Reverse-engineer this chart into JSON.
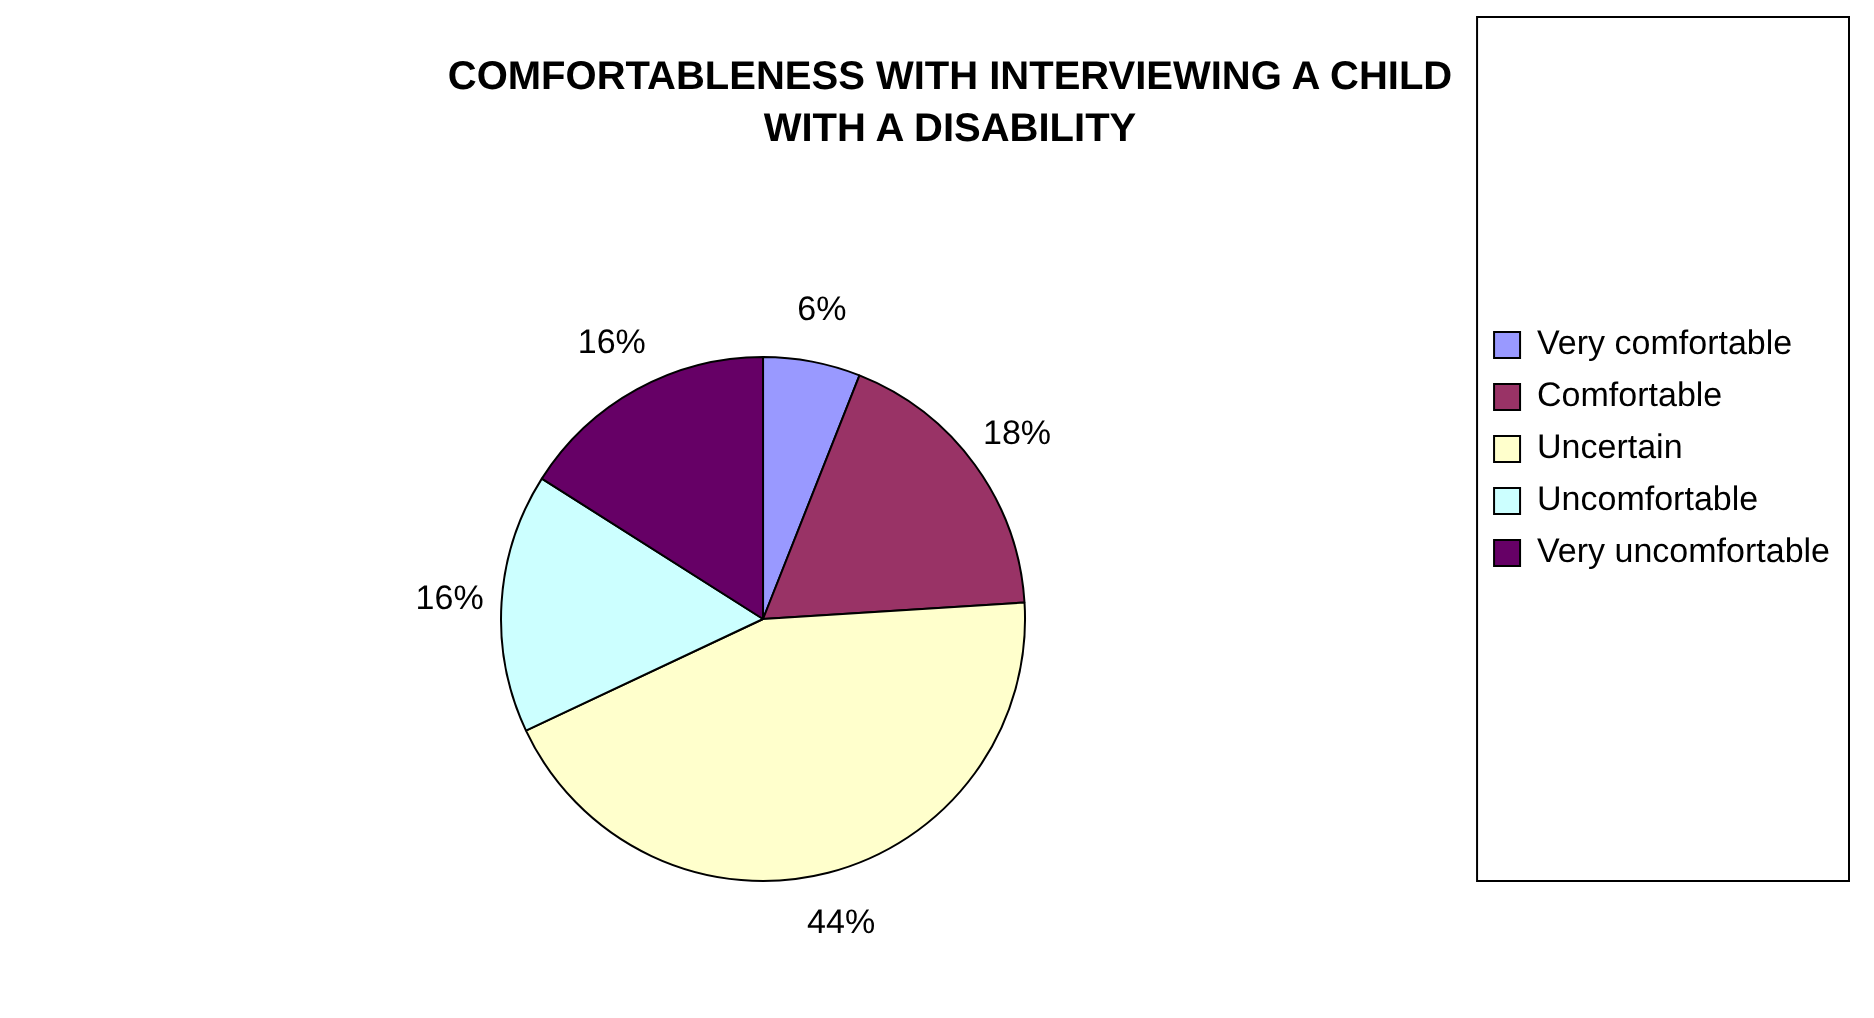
{
  "chart_data": {
    "type": "pie",
    "title": "COMFORTABLENESS WITH INTERVIEWING A CHILD WITH A DISABILITY",
    "categories": [
      "Very comfortable",
      "Comfortable",
      "Uncertain",
      "Uncomfortable",
      "Very uncomfortable"
    ],
    "values": [
      6,
      18,
      44,
      16,
      16
    ],
    "value_labels": [
      "6%",
      "18%",
      "44%",
      "16%",
      "16%"
    ],
    "colors": [
      "#9999ff",
      "#993366",
      "#ffffcc",
      "#ccffff",
      "#660066"
    ],
    "legend": "right"
  }
}
